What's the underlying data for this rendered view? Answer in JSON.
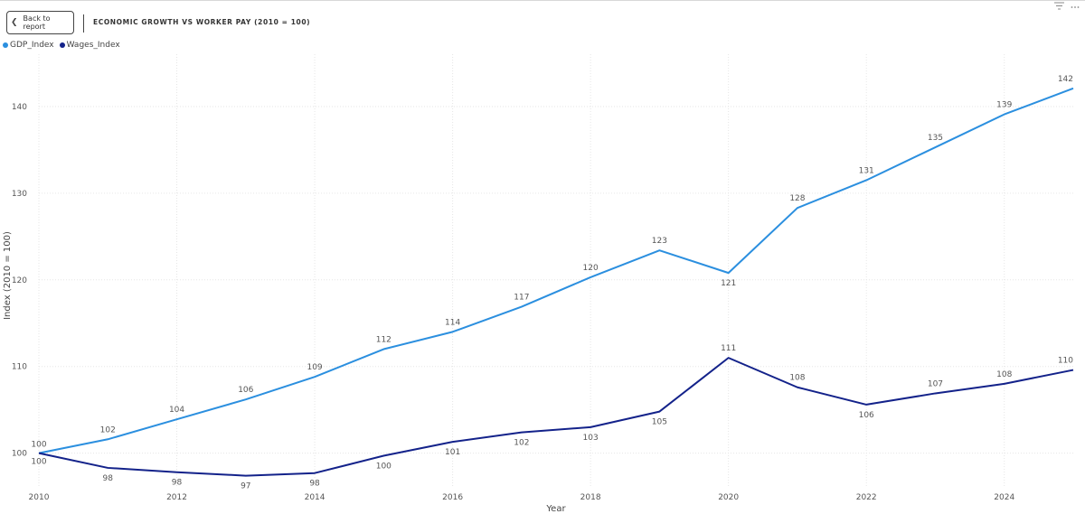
{
  "header": {
    "back_label": "Back to report",
    "title": "ECONOMIC GROWTH VS WORKER PAY (2010 = 100)"
  },
  "icons": [
    "filter-icon",
    "more-options-icon"
  ],
  "chart_data": {
    "type": "line",
    "xlabel": "Year",
    "ylabel": "Index (2010 = 100)",
    "xlim": [
      2010,
      2025
    ],
    "ylim": [
      96,
      145
    ],
    "xticks": [
      2010,
      2012,
      2014,
      2016,
      2018,
      2020,
      2022,
      2024
    ],
    "yticks": [
      100,
      110,
      120,
      130,
      140
    ],
    "grid": true,
    "legend_position": "top-left",
    "x": [
      2010,
      2011,
      2012,
      2013,
      2014,
      2015,
      2016,
      2017,
      2018,
      2019,
      2020,
      2021,
      2022,
      2023,
      2024,
      2025
    ],
    "series": [
      {
        "name": "GDP_Index",
        "color": "#2b8fdf",
        "values": [
          100,
          101.6,
          103.9,
          106.2,
          108.8,
          112.0,
          114.0,
          116.9,
          120.3,
          123.4,
          120.8,
          128.3,
          131.5,
          135.3,
          139.1,
          142.1
        ],
        "labels": [
          "100",
          "102",
          "104",
          "106",
          "109",
          "112",
          "114",
          "117",
          "120",
          "123",
          "121",
          "128",
          "131",
          "135",
          "139",
          "142"
        ]
      },
      {
        "name": "Wages_Index",
        "color": "#13228a",
        "values": [
          100,
          98.3,
          97.8,
          97.4,
          97.7,
          99.7,
          101.3,
          102.4,
          103.0,
          104.8,
          111.0,
          107.6,
          105.6,
          106.9,
          108.0,
          109.6
        ],
        "labels": [
          "100",
          "98",
          "98",
          "97",
          "98",
          "100",
          "101",
          "102",
          "103",
          "105",
          "111",
          "108",
          "106",
          "107",
          "108",
          "110"
        ]
      }
    ]
  }
}
